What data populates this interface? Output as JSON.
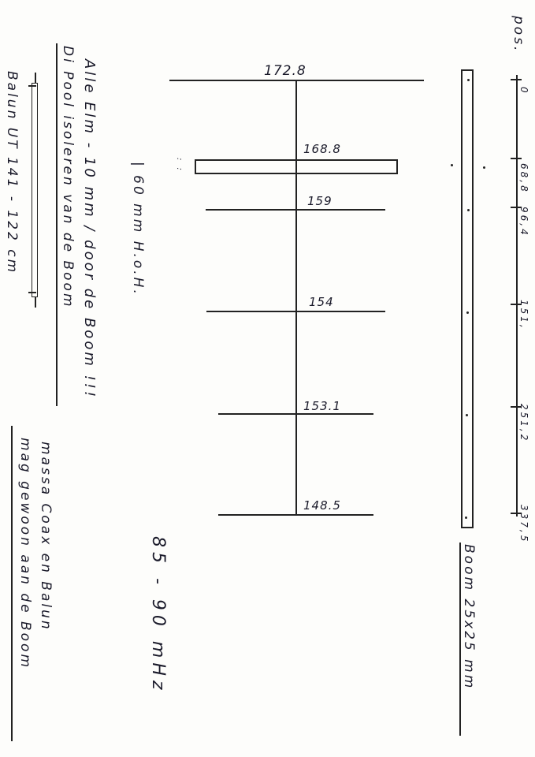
{
  "notes": {
    "all_elements": "Alle Elm - 10 mm / door de Boom !!!",
    "dipole": "Di Pool isoleren van de Boom",
    "balun": "Balun UT 141 - 122 cm",
    "ground_line1": "massa Coax en Balun",
    "ground_line2": "mag gewoon aan de Boom",
    "spacing": "| 60 mm H.o.H.",
    "frequency": "85 - 90 mHz",
    "boom": "Boom 25x25 mm"
  },
  "elements": [
    "172.8",
    "168.8",
    "159",
    "154",
    "153.1",
    "148.5"
  ],
  "positions": {
    "label": "pos.",
    "values": [
      "0",
      "68,8",
      "96,4",
      "151,",
      "251,2",
      "337,5"
    ]
  }
}
